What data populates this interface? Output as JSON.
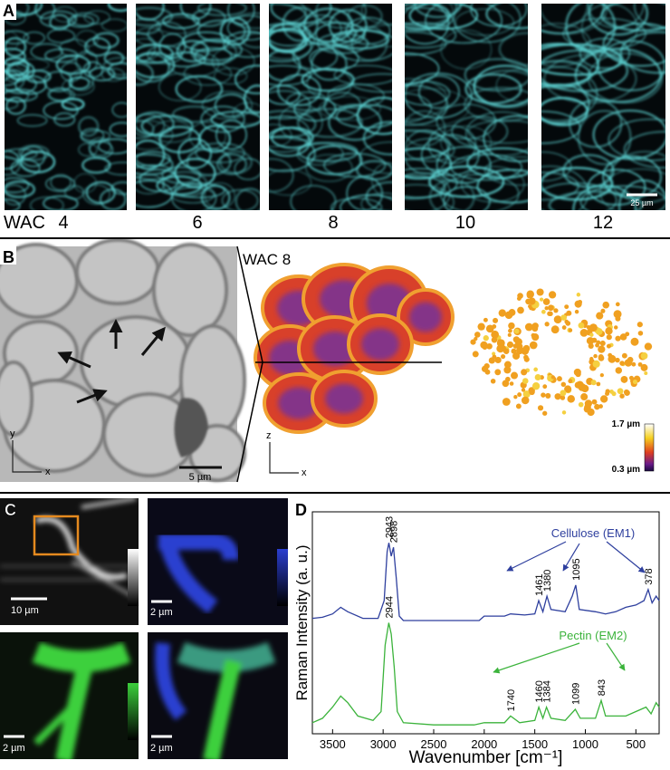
{
  "panel_a": {
    "label": "A",
    "prefix": "WAC",
    "wac": [
      "4",
      "6",
      "8",
      "10",
      "12"
    ],
    "scale_bar": "25 µm"
  },
  "panel_b": {
    "label": "B",
    "title": "WAC 8",
    "scale_bar": "5 µm",
    "axes_xy": [
      "y",
      "x"
    ],
    "axes_zx": [
      "z",
      "x"
    ],
    "colorbar": [
      "1.7 µm",
      "0.3 µm"
    ]
  },
  "panel_c": {
    "label": "C",
    "scale_bars": [
      "10 µm",
      "2 µm",
      "2 µm",
      "2 µm"
    ]
  },
  "chart_data": {
    "type": "line",
    "label": "D",
    "x_label": "Wavenumber [cm⁻¹]",
    "y_label": "Raman Intensity (a. u.)",
    "xlim": [
      3700,
      270
    ],
    "xticks": [
      3500,
      3000,
      2500,
      2000,
      1500,
      1000,
      500
    ],
    "ylim": [
      0,
      100
    ],
    "series": [
      {
        "name": "Cellulose (EM1)",
        "color": "#2e3f9e",
        "x": [
          3700,
          3600,
          3500,
          3420,
          3350,
          3200,
          3050,
          2990,
          2960,
          2943,
          2920,
          2898,
          2870,
          2840,
          2800,
          2050,
          2000,
          1800,
          1740,
          1600,
          1500,
          1461,
          1420,
          1380,
          1340,
          1200,
          1130,
          1095,
          1060,
          900,
          800,
          700,
          600,
          500,
          420,
          378,
          340,
          300,
          270
        ],
        "values": [
          52,
          52.5,
          54,
          57,
          55,
          52,
          52,
          60,
          82,
          86,
          80,
          84,
          70,
          53,
          51,
          51,
          53,
          53,
          54,
          53.5,
          54,
          60,
          55,
          62,
          56,
          55,
          62,
          67,
          56,
          55,
          54,
          55,
          57,
          58,
          60,
          65,
          59,
          62,
          60
        ],
        "peaks": [
          2943,
          2898,
          1461,
          1380,
          1095,
          378
        ]
      },
      {
        "name": "Pectin (EM2)",
        "color": "#3bb33b",
        "x": [
          3700,
          3600,
          3500,
          3420,
          3350,
          3250,
          3100,
          3020,
          2980,
          2944,
          2920,
          2890,
          2860,
          2800,
          2500,
          2100,
          2000,
          1800,
          1740,
          1650,
          1500,
          1460,
          1420,
          1384,
          1340,
          1200,
          1099,
          1050,
          900,
          843,
          800,
          600,
          500,
          400,
          350,
          300,
          270
        ],
        "values": [
          5,
          7,
          12,
          17,
          14,
          8,
          6,
          10,
          40,
          50,
          45,
          30,
          10,
          5,
          4,
          4,
          5,
          5,
          8,
          5,
          6,
          12,
          7,
          12,
          7,
          6,
          11,
          7,
          7,
          15,
          8,
          8,
          10,
          12,
          9,
          14,
          12
        ],
        "peaks": [
          2944,
          1740,
          1460,
          1384,
          1099,
          843
        ]
      }
    ]
  }
}
